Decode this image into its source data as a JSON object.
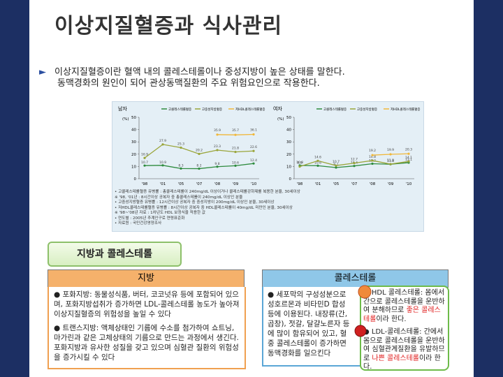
{
  "title": "이상지질혈증과 식사관리",
  "intro": [
    "이상지질혈증이란 혈액 내의 콜레스테롤이나 중성지방이 높은 상태를 말한다.",
    "동맥경화의 원인이 되어 관상동맥질환의 주요 위험요인으로 작용한다."
  ],
  "chart_data": [
    {
      "type": "line",
      "title": "남자",
      "y_label": "(%)",
      "categories": [
        "'98",
        "'01",
        "'05",
        "'07",
        "'08",
        "'09",
        "'10"
      ],
      "series": [
        {
          "name": "고콜레스테롤혈증",
          "color": "#2e8b3e",
          "values": [
            10.7,
            10.9,
            8.3,
            8.2,
            9.8,
            10.6,
            12.4
          ]
        },
        {
          "name": "고중성지방혈증",
          "color": "#9aa53a",
          "values": [
            16.9,
            27.9,
            25.3,
            20.2,
            23.3,
            21.8,
            22.6
          ]
        },
        {
          "name": "저HDL콜레스테롤혈증",
          "color": "#f0b73a",
          "values": [
            null,
            null,
            null,
            null,
            35.9,
            35.7,
            36.1
          ]
        }
      ],
      "ylim": [
        0,
        50
      ],
      "yticks": [
        0,
        10,
        20,
        30,
        40,
        50
      ]
    },
    {
      "type": "line",
      "title": "여자",
      "y_label": "(%)",
      "categories": [
        "'98",
        "'01",
        "'05",
        "'07",
        "'08",
        "'09",
        "'10"
      ],
      "series": [
        {
          "name": "고콜레스테롤혈증",
          "color": "#2e8b3e",
          "values": [
            10.8,
            10.6,
            9.1,
            10.4,
            12.2,
            11.8,
            13.1
          ]
        },
        {
          "name": "고중성지방혈증",
          "color": "#9aa53a",
          "values": [
            9.9,
            14.6,
            10.7,
            12.7,
            14.8,
            11.9,
            14.1
          ]
        },
        {
          "name": "저HDL콜레스테롤혈증",
          "color": "#f0b73a",
          "values": [
            null,
            null,
            null,
            null,
            19.2,
            19.9,
            20.3
          ]
        }
      ],
      "ylim": [
        0,
        50
      ],
      "yticks": [
        0,
        10,
        20,
        30,
        40,
        50
      ]
    }
  ],
  "notes": [
    "• 고콜레스테롤혈증 유병률 : 총콜레스테롤이 240mg/dL 이상이거나 콜레스테롤강하제를 복용한 분율, 30세이상",
    "※ '98, '01년 : 8시간이상 공복자 중 총콜레스테롤이 240mg/dL 이상인 분율",
    "• 고중성지방혈증 유병률 : 12시간이상 공복자 중 중성지방이 200mg/dL 이상인 분율, 30세이상",
    "• 저HDL콜레스테롤혈증 유병률 : 8시간이상 공복자 중 HDL콜레스테롤이 40mg/dL 미만인 분율, 30세이상",
    "※ '98~'08년 자료 : 1차년도 HDL 보정식을 적용한 값",
    "• 연도별 : 2005년 추계인구로 연령표준화",
    "• 자료원 : 국민건강영양조사"
  ],
  "section_title": "지방과 콜레스테롤",
  "fat": {
    "header": "지방",
    "items": [
      "● 포화지방: 동물성식품, 버터, 코코넛유 등에 포함되어 있으며, 포화지방섭취가 증가하면 LDL-콜레스테롤 농도가 높아져 이상지질혈증의 위험성을 높일 수 있다",
      "● 트랜스지방: 액체상태인 기름에 수소를 첨가하여 쇼트닝, 마가린과 같은 고체상태의 기름으로 만드는 과정에서 생긴다. 포화지방과 유사한 성질을 갖고 있으며 심혈관 질환의 위험성을 증가시킬 수 있다"
    ]
  },
  "cholesterol": {
    "header": "콜레스테롤",
    "text": "● 세포막의 구성성분으로 성호르몬과 비타민D 합성 등에 이용된다. 내장류(간, 곱창), 젓갈, 달걀노른자 등에 많이 함유되어 있고, 혈중 콜레스테롤이 증가하면 동맥경화를 일으킨다",
    "hdl": [
      "● HDL 콜레스테롤: 몸에서 간으로 콜레스테롤을 운반하여 분해하므로 ",
      "좋은 콜레스테롤",
      "이라 한다."
    ],
    "ldl": [
      "● LDL-콜레스테롤: 간에서 몸으로 콜레스테롤을 운반하여 심혈관계질환을 유발하므로 ",
      "나쁜 콜레스테롤",
      "이라 한다."
    ]
  }
}
